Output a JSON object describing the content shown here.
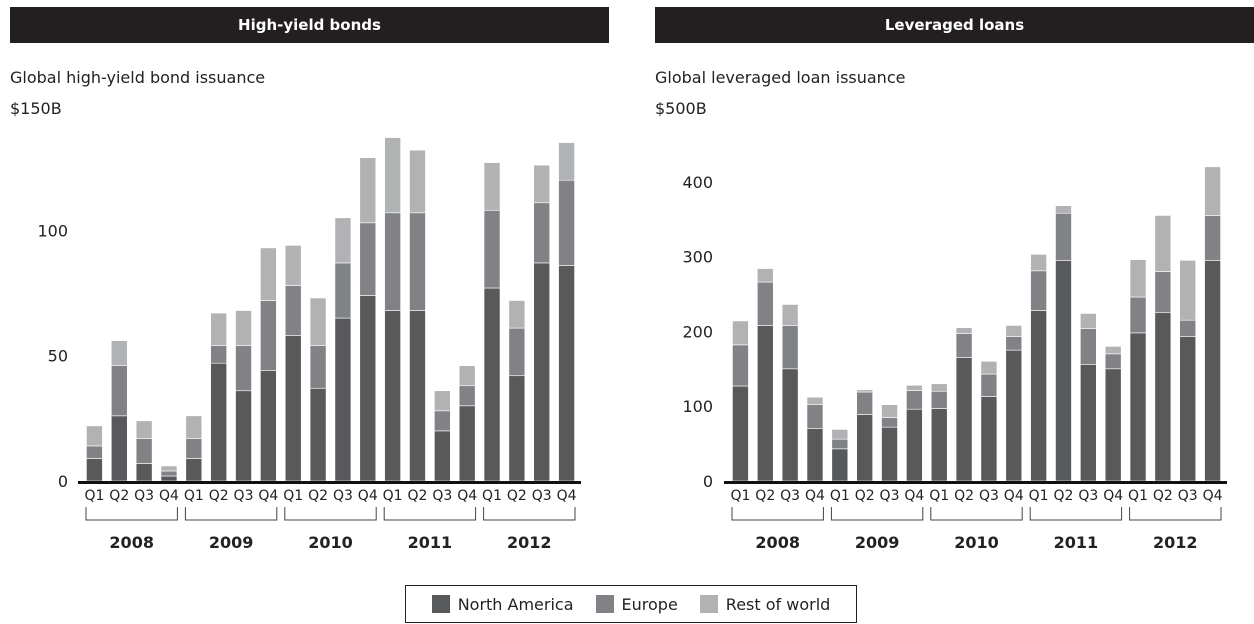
{
  "colors": {
    "north_america": "#58595b",
    "europe": "#818285",
    "rest_of_world": "#b1b2b4",
    "header_bg": "#231f20"
  },
  "legend": {
    "north_america": "North America",
    "europe": "Europe",
    "rest_of_world": "Rest of world"
  },
  "chart_data": [
    {
      "type": "bar",
      "stacked": true,
      "title": "High-yield bonds",
      "subtitle": "Global high-yield bond issuance",
      "unit_label": "$150B",
      "ylim": [
        0,
        150
      ],
      "yticks": [
        0,
        50,
        100
      ],
      "categories": [
        "Q1",
        "Q2",
        "Q3",
        "Q4",
        "Q1",
        "Q2",
        "Q3",
        "Q4",
        "Q1",
        "Q2",
        "Q3",
        "Q4",
        "Q1",
        "Q2",
        "Q3",
        "Q4",
        "Q1",
        "Q2",
        "Q3",
        "Q4"
      ],
      "years": [
        "2008",
        "2009",
        "2010",
        "2011",
        "2012"
      ],
      "series": [
        {
          "name": "North America",
          "values": [
            9,
            26,
            7,
            2,
            9,
            47,
            36,
            44,
            58,
            37,
            65,
            74,
            68,
            68,
            20,
            30,
            77,
            42,
            87,
            86
          ]
        },
        {
          "name": "Europe",
          "values": [
            5,
            20,
            10,
            2,
            8,
            7,
            18,
            28,
            20,
            17,
            22,
            29,
            39,
            39,
            8,
            8,
            31,
            19,
            24,
            34
          ]
        },
        {
          "name": "Rest of world",
          "values": [
            8,
            10,
            7,
            2,
            9,
            13,
            14,
            21,
            16,
            19,
            18,
            26,
            30,
            25,
            8,
            8,
            19,
            11,
            15,
            15
          ]
        }
      ]
    },
    {
      "type": "bar",
      "stacked": true,
      "title": "Leveraged loans",
      "subtitle": "Global leveraged loan issuance",
      "unit_label": "$500B",
      "ylim": [
        0,
        500
      ],
      "yticks": [
        0,
        100,
        200,
        300,
        400
      ],
      "categories": [
        "Q1",
        "Q2",
        "Q3",
        "Q4",
        "Q1",
        "Q2",
        "Q3",
        "Q4",
        "Q1",
        "Q2",
        "Q3",
        "Q4",
        "Q1",
        "Q2",
        "Q3",
        "Q4",
        "Q1",
        "Q2",
        "Q3",
        "Q4"
      ],
      "years": [
        "2008",
        "2009",
        "2010",
        "2011",
        "2012"
      ],
      "series": [
        {
          "name": "North America",
          "values": [
            127,
            208,
            150,
            70,
            43,
            89,
            72,
            96,
            97,
            165,
            113,
            175,
            228,
            295,
            156,
            150,
            198,
            225,
            193,
            295
          ]
        },
        {
          "name": "Europe",
          "values": [
            55,
            58,
            58,
            32,
            13,
            30,
            13,
            25,
            23,
            32,
            30,
            18,
            53,
            63,
            48,
            20,
            48,
            55,
            22,
            60
          ]
        },
        {
          "name": "Rest of world",
          "values": [
            32,
            18,
            28,
            10,
            13,
            3,
            17,
            7,
            10,
            8,
            17,
            15,
            22,
            10,
            20,
            10,
            50,
            75,
            80,
            65
          ]
        }
      ]
    }
  ]
}
